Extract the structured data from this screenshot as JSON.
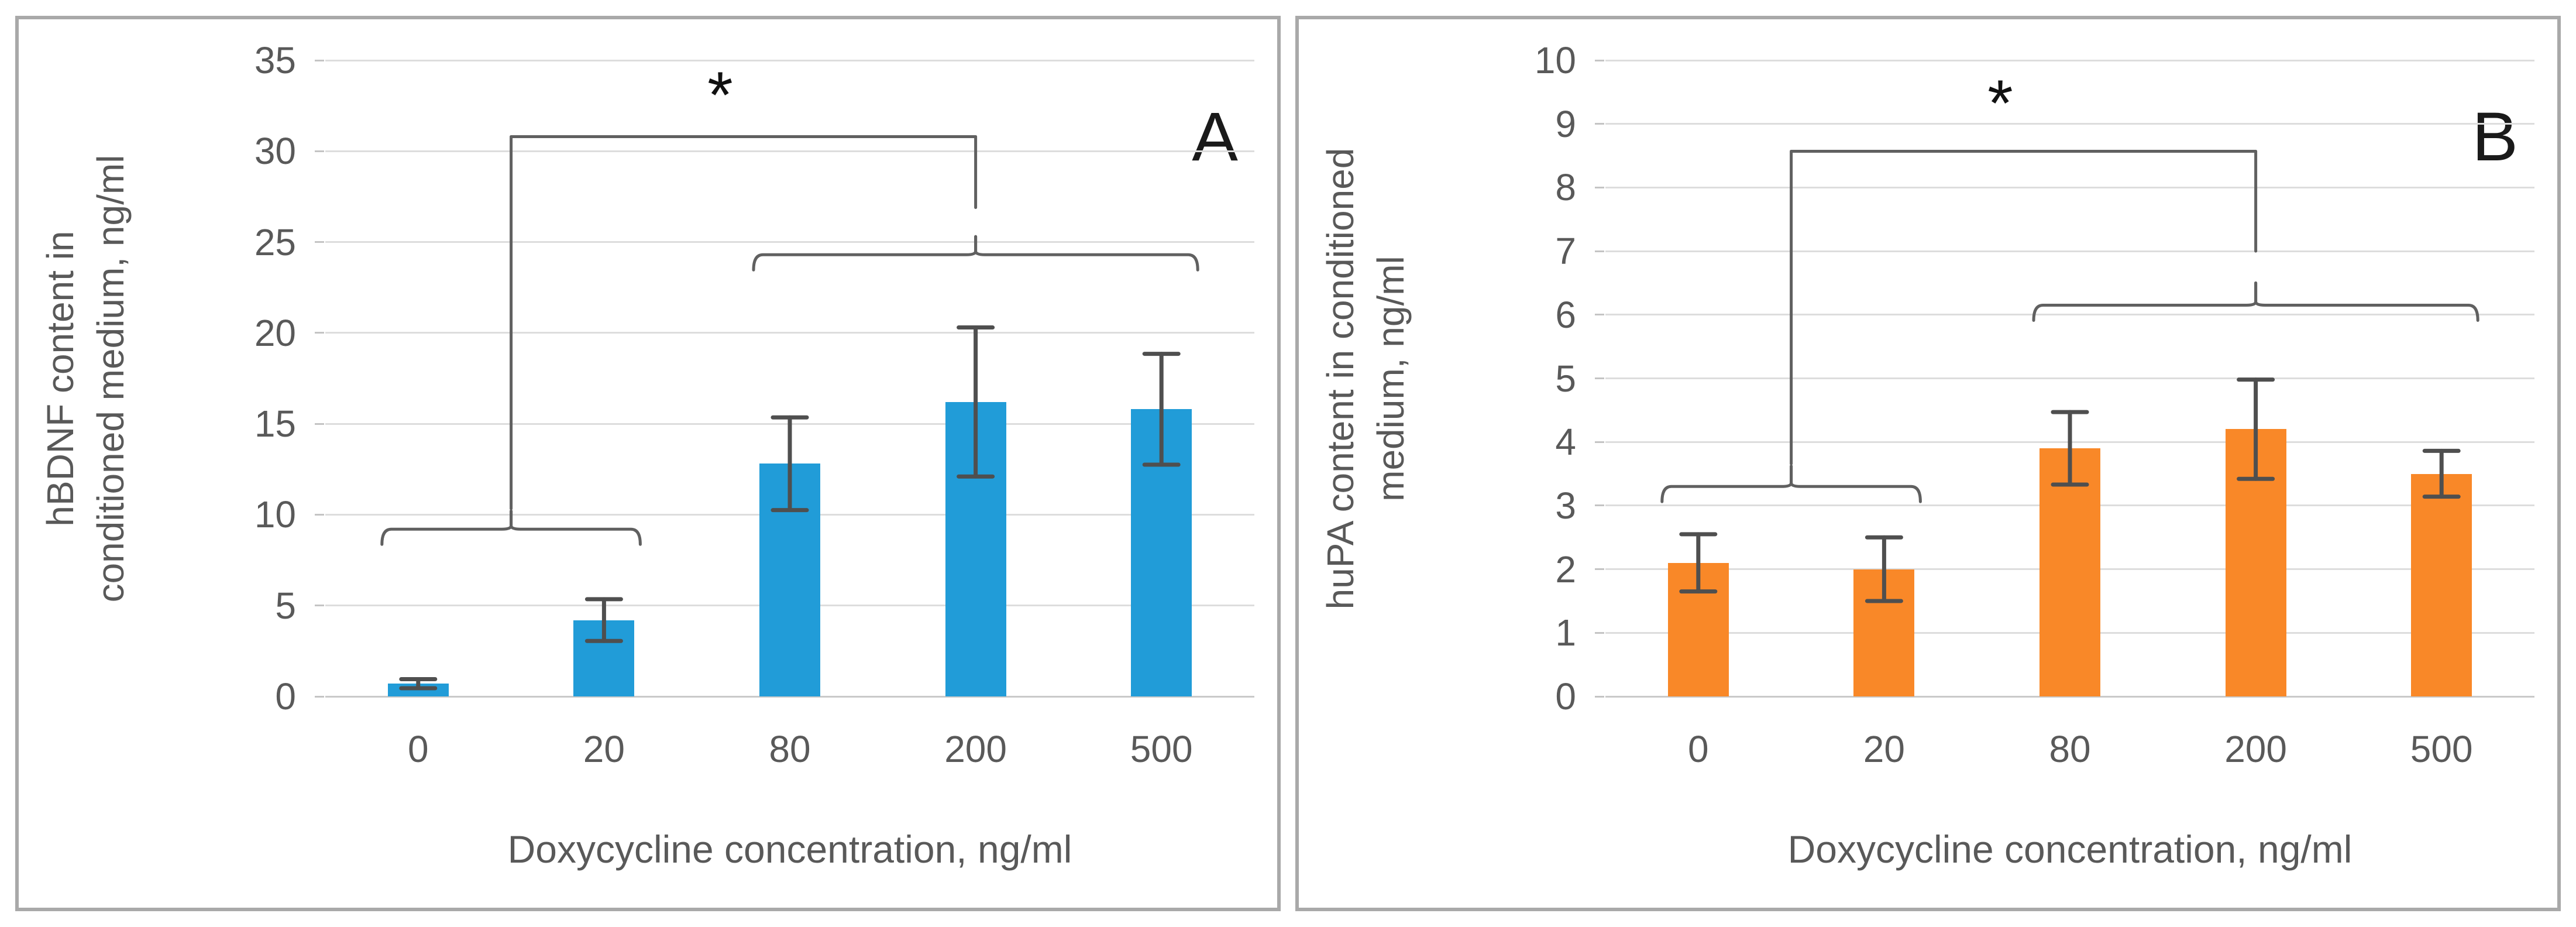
{
  "figure": {
    "background_color": "#FFFFFF",
    "panel_border_color": "#A9A9A9",
    "gridline_color": "#DDDDDD",
    "axis_text_color": "#595959",
    "error_bar_color": "#4F4F4F",
    "annotation_line_color": "#606060"
  },
  "chart_data": [
    {
      "type": "bar",
      "panel_label": "A",
      "ylabel_lines": [
        "hBDNF content in",
        "conditioned medium, ng/ml"
      ],
      "xlabel": "Doxycycline concentration, ng/ml",
      "categories": [
        "0",
        "20",
        "80",
        "200",
        "500"
      ],
      "values": [
        0.7,
        4.2,
        12.8,
        16.2,
        15.8
      ],
      "error_bars": [
        0.25,
        1.15,
        2.55,
        4.1,
        3.05
      ],
      "ylim": [
        0,
        35
      ],
      "ytick_step": 5,
      "grid": true,
      "legend": "none",
      "bar_color": "#219CD8",
      "significance": {
        "marker": "*",
        "asterisk_y": 33.0,
        "asterisk_x_frac": 0.45,
        "group_bracket_low": {
          "from_category": "0",
          "to_category": "20",
          "y": 9.2,
          "tick_top_y": 10.2
        },
        "group_bracket_high": {
          "from_category": "80",
          "to_category": "500",
          "y": 24.3,
          "tick_top_y": 25.3
        },
        "connector": {
          "horizontal_y": 30.8,
          "drop_above_category": "200",
          "drop_to_y": 26.9
        }
      }
    },
    {
      "type": "bar",
      "panel_label": "B",
      "ylabel_lines": [
        "huPA content in conditioned",
        "medium, ng/ml"
      ],
      "xlabel": "Doxycycline concentration, ng/ml",
      "categories": [
        "0",
        "20",
        "80",
        "200",
        "500"
      ],
      "values": [
        2.1,
        2.0,
        3.9,
        4.2,
        3.5
      ],
      "error_bars": [
        0.45,
        0.5,
        0.57,
        0.78,
        0.36
      ],
      "ylim": [
        0,
        10
      ],
      "ytick_step": 1,
      "grid": true,
      "legend": "none",
      "bar_color": "#F98828",
      "significance": {
        "marker": "*",
        "asterisk_y": 9.3,
        "asterisk_x_frac": 0.45,
        "group_bracket_low": {
          "from_category": "0",
          "to_category": "20",
          "y": 3.3,
          "tick_top_y": 3.62
        },
        "group_bracket_high": {
          "from_category": "80",
          "to_category": "500",
          "y": 6.15,
          "tick_top_y": 6.5
        },
        "connector": {
          "horizontal_y": 8.57,
          "drop_above_category": "200",
          "drop_to_y": 7.0
        }
      }
    }
  ]
}
